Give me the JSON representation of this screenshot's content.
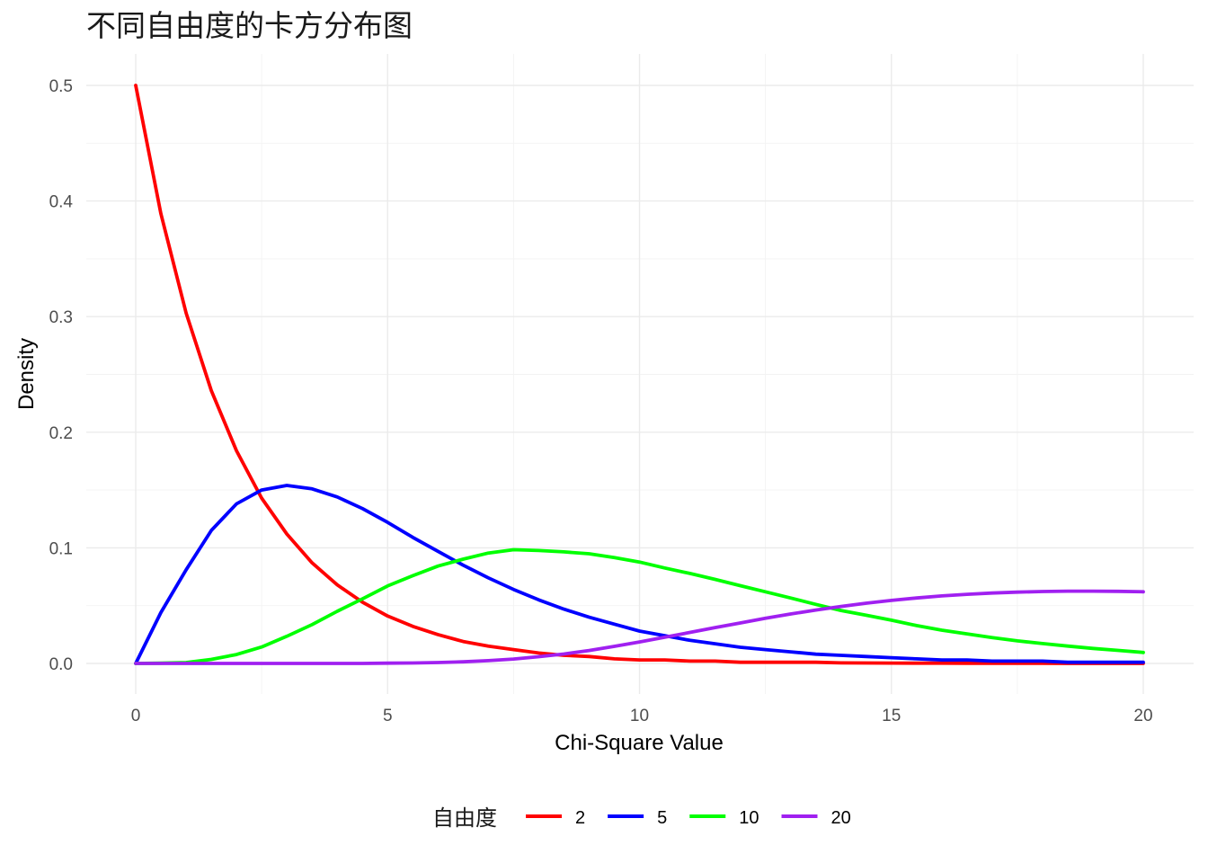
{
  "chart_data": {
    "type": "line",
    "title": "不同自由度的卡方分布图",
    "xlabel": "Chi-Square Value",
    "ylabel": "Density",
    "xlim": [
      0,
      20
    ],
    "ylim": [
      0,
      0.5
    ],
    "x_ticks": [
      "0",
      "5",
      "10",
      "15",
      "20"
    ],
    "y_ticks": [
      "0.0",
      "0.1",
      "0.2",
      "0.3",
      "0.4",
      "0.5"
    ],
    "grid": true,
    "legend": {
      "title": "自由度",
      "placement": "bottom",
      "entries": [
        "2",
        "5",
        "10",
        "20"
      ]
    },
    "x": [
      0,
      0.5,
      1,
      1.5,
      2,
      2.5,
      3,
      3.5,
      4,
      4.5,
      5,
      5.5,
      6,
      6.5,
      7,
      7.5,
      8,
      8.5,
      9,
      9.5,
      10,
      10.5,
      11,
      11.5,
      12,
      12.5,
      13,
      13.5,
      14,
      14.5,
      15,
      15.5,
      16,
      16.5,
      17,
      17.5,
      18,
      18.5,
      19,
      19.5,
      20
    ],
    "series": [
      {
        "name": "2",
        "color": "#ff0000",
        "values": [
          0.5,
          0.389,
          0.303,
          0.236,
          0.184,
          0.143,
          0.112,
          0.087,
          0.068,
          0.053,
          0.041,
          0.032,
          0.025,
          0.019,
          0.015,
          0.012,
          0.009,
          0.007,
          0.006,
          0.004,
          0.003,
          0.003,
          0.002,
          0.002,
          0.001,
          0.001,
          0.001,
          0.001,
          0.0005,
          0.0004,
          0.0003,
          0.0002,
          0.0002,
          0.0001,
          0.0001,
          0.0001,
          0.0001,
          0.0,
          0.0,
          0.0,
          0.0
        ]
      },
      {
        "name": "5",
        "color": "#0000ff",
        "values": [
          0.0,
          0.044,
          0.081,
          0.115,
          0.138,
          0.15,
          0.154,
          0.151,
          0.144,
          0.134,
          0.122,
          0.109,
          0.097,
          0.085,
          0.074,
          0.064,
          0.055,
          0.047,
          0.04,
          0.034,
          0.028,
          0.024,
          0.02,
          0.017,
          0.014,
          0.012,
          0.01,
          0.008,
          0.007,
          0.006,
          0.005,
          0.004,
          0.003,
          0.003,
          0.002,
          0.002,
          0.002,
          0.001,
          0.001,
          0.001,
          0.001
        ]
      },
      {
        "name": "10",
        "color": "#00ff00",
        "values": [
          0.0,
          0.0002,
          0.0008,
          0.0035,
          0.0077,
          0.0142,
          0.0235,
          0.0336,
          0.0451,
          0.0558,
          0.067,
          0.0759,
          0.0842,
          0.0902,
          0.0955,
          0.0984,
          0.0977,
          0.0965,
          0.0949,
          0.0916,
          0.0877,
          0.0826,
          0.0778,
          0.0727,
          0.0673,
          0.062,
          0.0566,
          0.0511,
          0.0458,
          0.0417,
          0.0374,
          0.0327,
          0.0288,
          0.0256,
          0.0224,
          0.0195,
          0.0172,
          0.015,
          0.013,
          0.0113,
          0.0095
        ]
      },
      {
        "name": "20",
        "color": "#a020f0",
        "values": [
          0.0,
          0.0,
          0.0,
          0.0,
          0.0,
          0.0,
          0.0,
          0.0,
          0.0,
          0.0,
          0.0002,
          0.0004,
          0.0008,
          0.0014,
          0.0024,
          0.0038,
          0.0058,
          0.0082,
          0.0112,
          0.0148,
          0.0186,
          0.0226,
          0.0268,
          0.031,
          0.035,
          0.039,
          0.0428,
          0.0462,
          0.0493,
          0.0521,
          0.0545,
          0.0566,
          0.0584,
          0.0598,
          0.0609,
          0.0617,
          0.0622,
          0.0625,
          0.0625,
          0.0624,
          0.062
        ]
      }
    ]
  }
}
